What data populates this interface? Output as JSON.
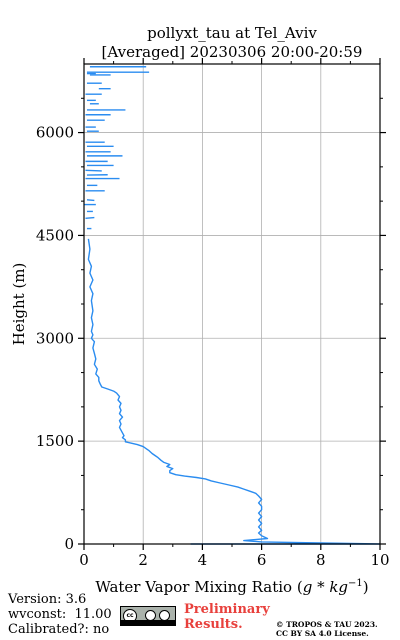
{
  "chart_data": {
    "type": "line",
    "title": "pollyxt_tau at Tel_Aviv",
    "subtitle": "[Averaged] 20230306 20:00-20:59",
    "xlabel": "Water Vapor Mixing Ratio (g*kg^-1)",
    "xlabel_prefix": "Water Vapor Mixing Ratio (",
    "xlabel_unit": "g * kg",
    "xlabel_exp": "−1",
    "xlabel_suffix": ")",
    "ylabel": "Height (m)",
    "xlim": [
      0,
      10
    ],
    "ylim": [
      0,
      7000
    ],
    "xticks": [
      0,
      2,
      4,
      6,
      8,
      10
    ],
    "xtick_labels": [
      "0",
      "2",
      "4",
      "6",
      "8",
      "10"
    ],
    "yticks": [
      0,
      1500,
      3000,
      4500,
      6000
    ],
    "ytick_labels": [
      "0",
      "1500",
      "3000",
      "4500",
      "6000"
    ],
    "grid": true,
    "line_color": "#2a8cf0",
    "series": [
      {
        "values": [
          [
            3.6,
            0
          ],
          [
            10.0,
            0
          ],
          [
            6.0,
            30
          ],
          [
            5.4,
            50
          ],
          [
            6.2,
            80
          ],
          [
            6.0,
            120
          ],
          [
            5.9,
            160
          ],
          [
            6.0,
            200
          ],
          [
            5.9,
            250
          ],
          [
            6.0,
            300
          ],
          [
            5.9,
            350
          ],
          [
            6.0,
            400
          ],
          [
            5.9,
            450
          ],
          [
            6.0,
            500
          ],
          [
            6.0,
            550
          ],
          [
            5.9,
            600
          ],
          [
            6.0,
            650
          ],
          [
            5.9,
            700
          ],
          [
            5.8,
            740
          ],
          [
            5.6,
            770
          ],
          [
            5.4,
            800
          ],
          [
            5.2,
            830
          ],
          [
            4.9,
            860
          ],
          [
            4.6,
            890
          ],
          [
            4.3,
            920
          ],
          [
            4.1,
            950
          ],
          [
            3.8,
            970
          ],
          [
            3.4,
            990
          ],
          [
            3.1,
            1010
          ],
          [
            2.9,
            1040
          ],
          [
            2.9,
            1070
          ],
          [
            3.0,
            1100
          ],
          [
            2.8,
            1130
          ],
          [
            2.9,
            1160
          ],
          [
            2.7,
            1190
          ],
          [
            2.6,
            1220
          ],
          [
            2.5,
            1260
          ],
          [
            2.4,
            1290
          ],
          [
            2.3,
            1320
          ],
          [
            2.2,
            1360
          ],
          [
            2.1,
            1390
          ],
          [
            2.0,
            1420
          ],
          [
            1.8,
            1450
          ],
          [
            1.6,
            1470
          ],
          [
            1.4,
            1490
          ],
          [
            1.4,
            1520
          ],
          [
            1.3,
            1550
          ],
          [
            1.35,
            1580
          ],
          [
            1.3,
            1620
          ],
          [
            1.25,
            1660
          ],
          [
            1.2,
            1700
          ],
          [
            1.25,
            1750
          ],
          [
            1.2,
            1800
          ],
          [
            1.3,
            1850
          ],
          [
            1.2,
            1900
          ],
          [
            1.25,
            1950
          ],
          [
            1.2,
            2000
          ],
          [
            1.25,
            2050
          ],
          [
            1.15,
            2100
          ],
          [
            1.2,
            2150
          ],
          [
            1.1,
            2200
          ],
          [
            1.0,
            2230
          ],
          [
            0.8,
            2260
          ],
          [
            0.6,
            2290
          ],
          [
            0.55,
            2330
          ],
          [
            0.5,
            2380
          ],
          [
            0.5,
            2430
          ],
          [
            0.4,
            2480
          ],
          [
            0.45,
            2550
          ],
          [
            0.35,
            2620
          ],
          [
            0.4,
            2700
          ],
          [
            0.35,
            2780
          ],
          [
            0.3,
            2860
          ],
          [
            0.35,
            2950
          ],
          [
            0.25,
            3000
          ],
          [
            0.3,
            3050
          ],
          [
            0.25,
            3100
          ],
          [
            0.3,
            3200
          ],
          [
            0.25,
            3300
          ],
          [
            0.3,
            3400
          ],
          [
            0.25,
            3550
          ],
          [
            0.3,
            3650
          ],
          [
            0.2,
            3750
          ],
          [
            0.3,
            3850
          ],
          [
            0.2,
            3950
          ],
          [
            0.25,
            4050
          ],
          [
            0.15,
            4150
          ],
          [
            0.2,
            4300
          ],
          [
            0.15,
            4450
          ]
        ]
      }
    ],
    "upper_segments": [
      [
        [
          0.1,
          4600
        ],
        [
          0.25,
          4600
        ]
      ],
      [
        [
          0.05,
          4750
        ],
        [
          0.35,
          4760
        ]
      ],
      [
        [
          0.1,
          4850
        ],
        [
          0.3,
          4850
        ]
      ],
      [
        [
          0.0,
          4950
        ],
        [
          0.4,
          4950
        ]
      ],
      [
        [
          0.1,
          5020
        ],
        [
          0.35,
          5010
        ]
      ],
      [
        [
          0.05,
          5150
        ],
        [
          0.7,
          5150
        ]
      ],
      [
        [
          0.1,
          5230
        ],
        [
          0.45,
          5230
        ]
      ],
      [
        [
          0.05,
          5330
        ],
        [
          1.2,
          5330
        ]
      ],
      [
        [
          0.1,
          5380
        ],
        [
          0.8,
          5385
        ]
      ],
      [
        [
          0.05,
          5450
        ],
        [
          0.6,
          5440
        ]
      ],
      [
        [
          0.1,
          5520
        ],
        [
          1.0,
          5520
        ]
      ],
      [
        [
          0.05,
          5580
        ],
        [
          0.8,
          5580
        ]
      ],
      [
        [
          0.1,
          5660
        ],
        [
          1.3,
          5660
        ]
      ],
      [
        [
          0.05,
          5720
        ],
        [
          0.9,
          5720
        ]
      ],
      [
        [
          0.1,
          5800
        ],
        [
          1.0,
          5800
        ]
      ],
      [
        [
          0.05,
          5860
        ],
        [
          0.7,
          5860
        ]
      ],
      [
        [
          0.1,
          6020
        ],
        [
          0.5,
          6020
        ]
      ],
      [
        [
          0.05,
          6080
        ],
        [
          0.4,
          6080
        ]
      ],
      [
        [
          0.1,
          6180
        ],
        [
          0.7,
          6180
        ]
      ],
      [
        [
          0.05,
          6260
        ],
        [
          0.9,
          6260
        ]
      ],
      [
        [
          0.1,
          6330
        ],
        [
          1.4,
          6330
        ]
      ],
      [
        [
          0.2,
          6420
        ],
        [
          0.5,
          6420
        ]
      ],
      [
        [
          0.1,
          6470
        ],
        [
          0.4,
          6470
        ]
      ],
      [
        [
          0.05,
          6560
        ],
        [
          0.6,
          6560
        ]
      ],
      [
        [
          0.5,
          6640
        ],
        [
          0.9,
          6640
        ]
      ],
      [
        [
          0.1,
          6720
        ],
        [
          0.6,
          6720
        ]
      ],
      [
        [
          0.2,
          6840
        ],
        [
          0.9,
          6840
        ]
      ],
      [
        [
          0.1,
          6880
        ],
        [
          2.2,
          6880
        ]
      ],
      [
        [
          0.2,
          6960
        ],
        [
          2.1,
          6960
        ]
      ],
      [
        [
          0.1,
          6860
        ],
        [
          0.4,
          6860
        ]
      ]
    ]
  },
  "footer": {
    "version": "Version: 3.6",
    "wvconst": "wvconst:  11.00",
    "calibrated": "Calibrated?: no",
    "preliminary_line1": "Preliminary",
    "preliminary_line2": "Results.",
    "copyright_line1": "© TROPOS & TAU 2023.",
    "copyright_line2": "CC BY SA 4.0 License."
  },
  "colors": {
    "line": "#2a8cf0",
    "grid": "#b0b0b0",
    "preliminary": "#e8403c"
  }
}
